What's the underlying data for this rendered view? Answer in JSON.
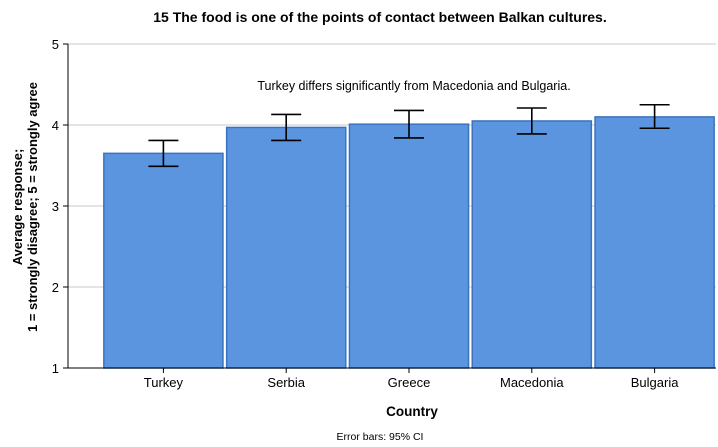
{
  "chart_data": {
    "type": "bar",
    "title": "15 The food is one of the points of contact between Balkan cultures.",
    "annotation": "Turkey differs significantly from Macedonia and Bulgaria.",
    "xlabel": "Country",
    "ylabel_lines": [
      "Average response;",
      "1 = strongly disagree; 5 = strongly agree"
    ],
    "categories": [
      "Turkey",
      "Serbia",
      "Greece",
      "Macedonia",
      "Bulgaria"
    ],
    "values": [
      3.65,
      3.97,
      4.01,
      4.05,
      4.1
    ],
    "ci_low": [
      3.49,
      3.81,
      3.84,
      3.89,
      3.96
    ],
    "ci_high": [
      3.81,
      4.13,
      4.18,
      4.21,
      4.25
    ],
    "ylim": [
      1,
      5
    ],
    "yticks": [
      1,
      2,
      3,
      4,
      5
    ],
    "grid": true,
    "bar_color": "#5b95e0",
    "bar_edge_color": "#3c72bd",
    "footnote": "Error bars: 95% CI"
  }
}
